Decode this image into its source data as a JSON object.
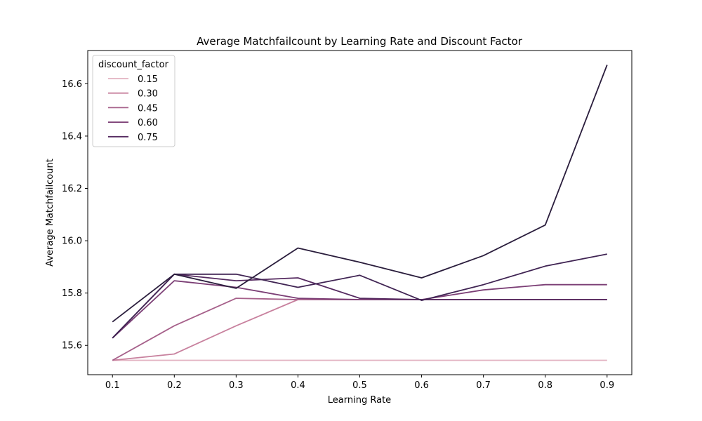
{
  "chart_data": {
    "type": "line",
    "title": "Average Matchfailcount by Learning Rate and Discount Factor",
    "xlabel": "Learning Rate",
    "ylabel": "Average Matchfailcount",
    "x": [
      0.1,
      0.2,
      0.3,
      0.4,
      0.5,
      0.6,
      0.7,
      0.8,
      0.9
    ],
    "x_ticks": [
      "0.1",
      "0.2",
      "0.3",
      "0.4",
      "0.5",
      "0.6",
      "0.7",
      "0.8",
      "0.9"
    ],
    "y_ticks": [
      15.6,
      15.8,
      16.0,
      16.2,
      16.4,
      16.6
    ],
    "y_tick_labels": [
      "15.6",
      "15.8",
      "16.0",
      "16.2",
      "16.4",
      "16.6"
    ],
    "xlim": [
      0.06,
      0.94
    ],
    "ylim": [
      15.488,
      16.727
    ],
    "grid": false,
    "legend": {
      "title": "discount_factor",
      "position": "top-left"
    },
    "series": [
      {
        "name": "0.15",
        "color": "#e2b2c1",
        "values": [
          15.543,
          15.543,
          15.543,
          15.543,
          15.543,
          15.543,
          15.543,
          15.543,
          15.543
        ]
      },
      {
        "name": "0.30",
        "color": "#c8819e",
        "values": [
          15.543,
          15.567,
          15.675,
          15.775,
          15.775,
          15.775,
          15.775,
          15.775,
          15.775
        ]
      },
      {
        "name": "0.45",
        "color": "#a6608a",
        "values": [
          15.543,
          15.675,
          15.78,
          15.775,
          15.775,
          15.775,
          15.775,
          15.775,
          15.775
        ]
      },
      {
        "name": "0.60",
        "color": "#7b3e75",
        "values": [
          15.628,
          15.847,
          15.822,
          15.78,
          15.775,
          15.775,
          15.812,
          15.832,
          15.832
        ]
      },
      {
        "name": "0.75",
        "color": "#552a60",
        "values": [
          15.628,
          15.872,
          15.847,
          15.858,
          15.78,
          15.775,
          15.775,
          15.775,
          15.775
        ]
      },
      {
        "name": "",
        "color": "#402453",
        "values": [
          15.628,
          15.872,
          15.872,
          15.822,
          15.868,
          15.772,
          15.832,
          15.903,
          15.949
        ]
      },
      {
        "name": "",
        "color": "#2a1d3c",
        "values": [
          15.69,
          15.872,
          15.818,
          15.972,
          15.918,
          15.858,
          15.943,
          16.06,
          16.672
        ]
      }
    ]
  }
}
